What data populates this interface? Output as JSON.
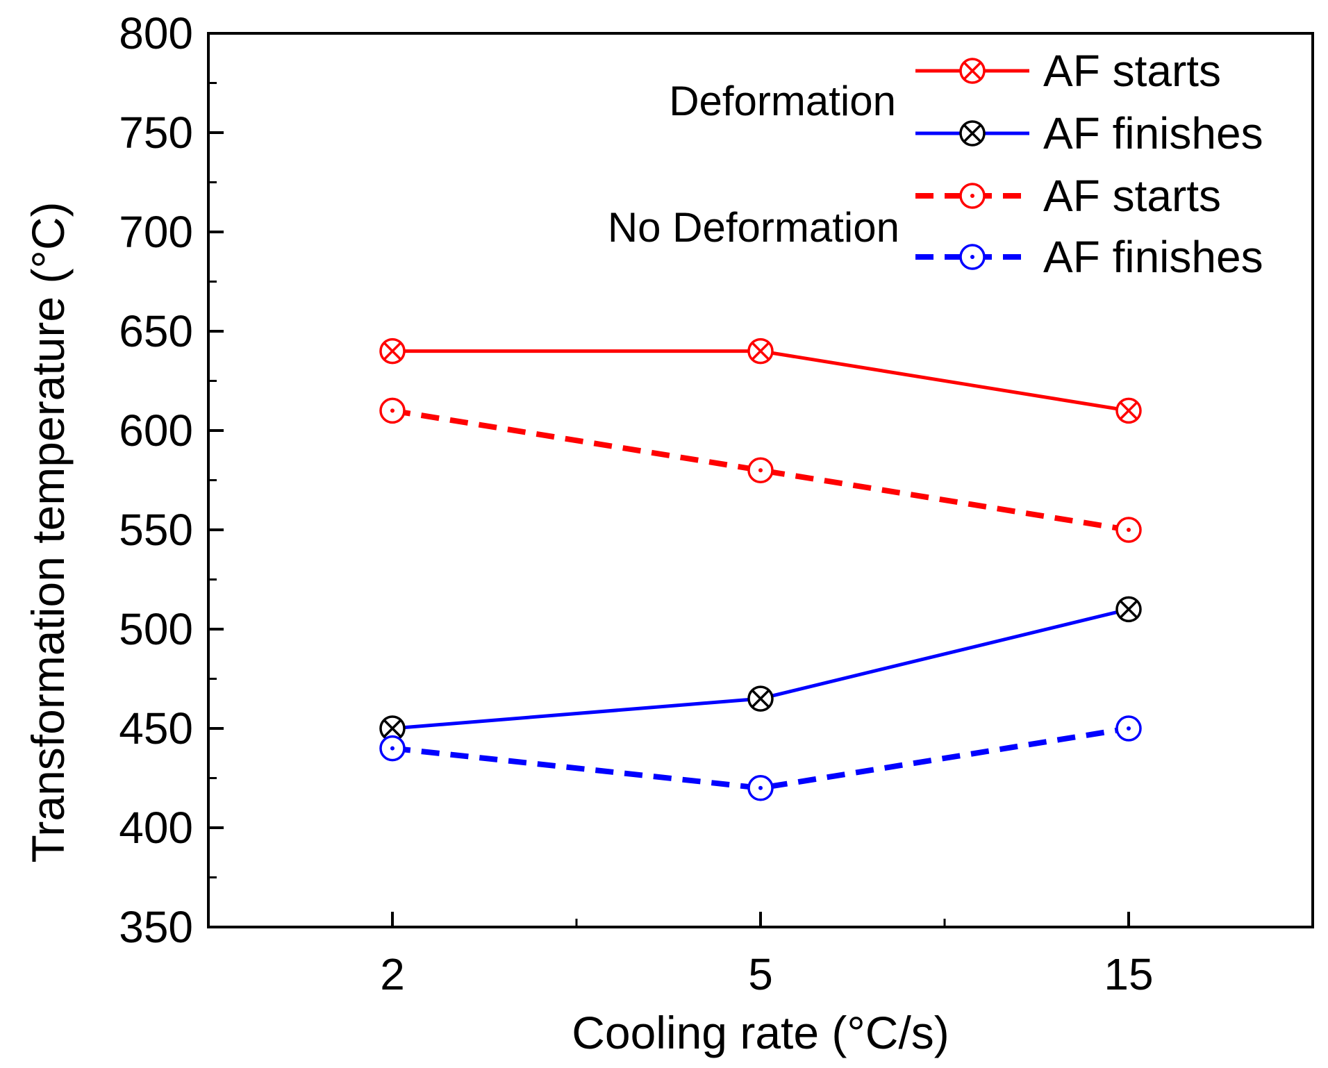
{
  "chart_data": {
    "type": "line",
    "title": "",
    "xlabel": "Cooling rate (°C/s)",
    "ylabel": "Transformation temperature (°C)",
    "categories": [
      "2",
      "5",
      "15"
    ],
    "ylim": [
      350,
      800
    ],
    "yticks": [
      "350",
      "400",
      "450",
      "500",
      "550",
      "600",
      "650",
      "700",
      "750",
      "800"
    ],
    "legend_position": "top-right",
    "group_labels": {
      "deformation": "Deformation",
      "no_deformation": "No Deformation"
    },
    "series": [
      {
        "name": "AF starts",
        "group": "Deformation",
        "color": "#ff0000",
        "line": "solid",
        "marker": "circle-x",
        "values": [
          640,
          640,
          610
        ]
      },
      {
        "name": "AF finishes",
        "group": "Deformation",
        "color": "#0000ff",
        "marker_color": "#000000",
        "line": "solid",
        "marker": "circle-x",
        "values": [
          450,
          465,
          510
        ]
      },
      {
        "name": "AF starts",
        "group": "No Deformation",
        "color": "#ff0000",
        "line": "dashed",
        "marker": "circle-dot",
        "values": [
          610,
          580,
          550
        ]
      },
      {
        "name": "AF finishes",
        "group": "No Deformation",
        "color": "#0000ff",
        "line": "dashed",
        "marker": "circle-dot",
        "values": [
          440,
          420,
          450
        ]
      }
    ]
  }
}
